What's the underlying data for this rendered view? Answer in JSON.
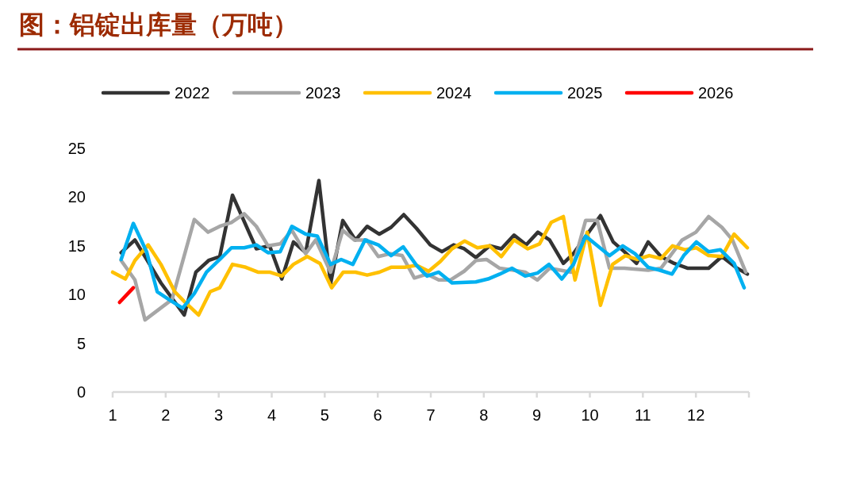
{
  "chart_data": {
    "type": "line",
    "title": "图：铝锭出库量（万吨）",
    "xlim": [
      1,
      13
    ],
    "xticks": [
      1,
      2,
      3,
      4,
      5,
      6,
      7,
      8,
      9,
      10,
      11,
      12,
      {
        "value": 13,
        "label": null
      }
    ],
    "ylim": [
      0,
      25
    ],
    "yticks": [
      0,
      5,
      10,
      15,
      20,
      25
    ],
    "grid": false,
    "legend": "top",
    "marker": "none",
    "line_style": "solid",
    "series": [
      {
        "name": "2022",
        "color": "#333333",
        "x": [
          1.16,
          1.42,
          1.91,
          2.35,
          2.57,
          2.81,
          3.02,
          3.26,
          3.71,
          3.96,
          4.19,
          4.41,
          4.64,
          4.89,
          5.11,
          5.34,
          5.58,
          5.8,
          6.03,
          6.25,
          6.49,
          6.73,
          6.99,
          7.21,
          7.43,
          7.63,
          7.85,
          8.11,
          8.33,
          8.57,
          8.8,
          9.02,
          9.24,
          9.5,
          9.69,
          10.2,
          10.44,
          10.65,
          10.88,
          11.1,
          11.34,
          11.59,
          11.85,
          12.24,
          12.49,
          12.75,
          12.97
        ],
        "values": [
          14.3,
          15.6,
          11.2,
          7.9,
          12.3,
          13.5,
          13.9,
          20.2,
          14.7,
          15.0,
          11.6,
          15.4,
          14.3,
          21.7,
          11.1,
          17.6,
          15.6,
          17.0,
          16.2,
          16.9,
          18.2,
          16.8,
          15.1,
          14.4,
          15.1,
          14.7,
          13.8,
          15.0,
          14.7,
          16.1,
          15.1,
          16.4,
          15.6,
          13.2,
          14.2,
          18.1,
          15.4,
          14.4,
          13.2,
          15.4,
          13.9,
          13.2,
          12.7,
          12.7,
          13.9,
          12.8,
          12.1
        ]
      },
      {
        "name": "2023",
        "color": "#a6a6a6",
        "x": [
          1.16,
          1.42,
          1.61,
          2.12,
          2.54,
          2.8,
          3.02,
          3.24,
          3.48,
          3.71,
          3.93,
          4.16,
          4.38,
          4.64,
          4.83,
          5.11,
          5.34,
          5.56,
          5.79,
          6.01,
          6.24,
          6.46,
          6.69,
          6.93,
          7.15,
          7.37,
          7.63,
          7.85,
          8.05,
          8.3,
          8.56,
          8.78,
          9.01,
          9.24,
          9.65,
          9.92,
          10.14,
          10.37,
          10.65,
          11.1,
          11.34,
          11.74,
          12.0,
          12.24,
          12.49,
          12.69,
          12.94
        ],
        "values": [
          13.5,
          11.5,
          7.4,
          9.5,
          17.7,
          16.4,
          17.0,
          17.4,
          18.3,
          17.0,
          15.0,
          15.2,
          16.6,
          14.2,
          15.6,
          12.3,
          16.6,
          15.6,
          15.6,
          13.9,
          14.2,
          14.0,
          11.7,
          12.1,
          11.5,
          11.5,
          12.4,
          13.5,
          13.6,
          12.7,
          12.5,
          12.3,
          11.5,
          12.7,
          12.3,
          17.6,
          17.6,
          12.7,
          12.7,
          12.5,
          12.7,
          15.6,
          16.4,
          18.0,
          16.9,
          15.6,
          12.3
        ]
      },
      {
        "name": "2024",
        "color": "#ffc000",
        "x": [
          1.0,
          1.24,
          1.42,
          1.67,
          1.91,
          2.17,
          2.35,
          2.62,
          2.84,
          3.02,
          3.26,
          3.51,
          3.74,
          3.96,
          4.19,
          4.41,
          4.67,
          4.91,
          5.13,
          5.35,
          5.58,
          5.8,
          6.03,
          6.25,
          6.51,
          6.73,
          6.96,
          7.18,
          7.4,
          7.64,
          7.88,
          8.11,
          8.33,
          8.57,
          8.83,
          9.05,
          9.27,
          9.5,
          9.72,
          9.95,
          10.2,
          10.43,
          10.67,
          10.89,
          11.12,
          11.34,
          11.56,
          11.79,
          12.01,
          12.24,
          12.49,
          12.72,
          12.97
        ],
        "values": [
          12.3,
          11.6,
          13.5,
          15.1,
          13.1,
          10.3,
          9.3,
          7.9,
          10.3,
          10.7,
          13.1,
          12.8,
          12.3,
          12.3,
          11.9,
          13.1,
          13.9,
          13.2,
          10.7,
          12.3,
          12.3,
          12.0,
          12.3,
          12.8,
          12.8,
          13.0,
          12.4,
          13.4,
          14.7,
          15.5,
          14.8,
          15.0,
          13.9,
          15.6,
          14.7,
          15.2,
          17.4,
          18.0,
          11.5,
          16.4,
          8.9,
          13.1,
          14.0,
          13.6,
          14.0,
          13.7,
          15.0,
          14.6,
          14.8,
          14.0,
          13.9,
          16.2,
          14.8
        ]
      },
      {
        "name": "2025",
        "color": "#00b0f0",
        "x": [
          1.16,
          1.39,
          1.64,
          1.84,
          2.06,
          2.32,
          2.54,
          2.77,
          3.02,
          3.24,
          3.48,
          3.71,
          3.93,
          4.16,
          4.38,
          4.64,
          4.86,
          5.11,
          5.31,
          5.53,
          5.76,
          6.01,
          6.25,
          6.48,
          6.73,
          6.93,
          7.15,
          7.4,
          7.85,
          8.08,
          8.3,
          8.53,
          8.78,
          9.01,
          9.23,
          9.47,
          9.69,
          9.92,
          10.37,
          10.62,
          10.85,
          11.1,
          11.32,
          11.55,
          11.77,
          12.01,
          12.24,
          12.46,
          12.72,
          12.91
        ],
        "values": [
          13.6,
          17.3,
          14.4,
          10.3,
          9.5,
          8.6,
          10.1,
          12.3,
          13.6,
          14.8,
          14.8,
          15.1,
          14.3,
          14.4,
          17.0,
          16.2,
          16.0,
          13.1,
          13.6,
          13.1,
          15.6,
          15.1,
          14.0,
          14.9,
          13.0,
          11.9,
          12.3,
          11.2,
          11.3,
          11.6,
          12.1,
          12.7,
          11.9,
          12.2,
          13.1,
          11.6,
          13.1,
          16.0,
          14.0,
          15.0,
          14.2,
          12.8,
          12.5,
          12.1,
          14.0,
          15.4,
          14.4,
          14.6,
          13.2,
          10.7
        ]
      },
      {
        "name": "2026",
        "color": "#ff0000",
        "x": [
          1.13,
          1.39
        ],
        "values": [
          9.2,
          10.7
        ]
      }
    ]
  }
}
